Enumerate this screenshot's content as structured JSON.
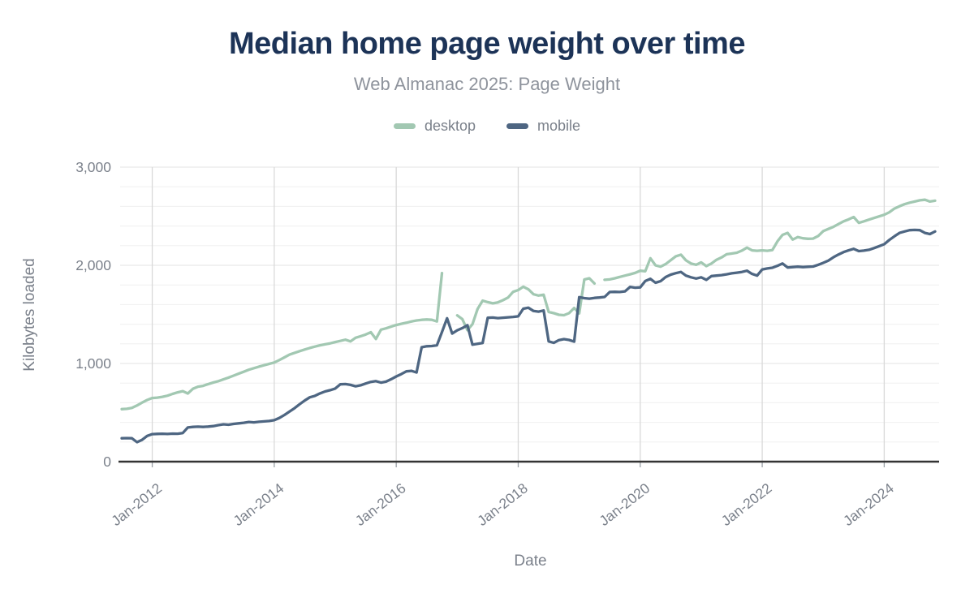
{
  "header": {
    "title": "Median home page weight over time",
    "subtitle": "Web Almanac 2025: Page Weight"
  },
  "legend": [
    {
      "label": "desktop",
      "color": "#a2c8b2"
    },
    {
      "label": "mobile",
      "color": "#4e6682"
    }
  ],
  "chart_data": {
    "type": "line",
    "title": "Median home page weight over time",
    "subtitle": "Web Almanac 2025: Page Weight",
    "xlabel": "Date",
    "ylabel": "Kilobytes loaded",
    "ylim": [
      0,
      3000
    ],
    "grid": {
      "vertical_color": "#d9d9d9",
      "major_color": "#e3e3e3",
      "minor_color": "#f0f0f0",
      "axis_color": "#333333",
      "minor_step": 200
    },
    "legend_position": "top",
    "y_ticks": [
      {
        "value": 0,
        "label": "0"
      },
      {
        "value": 1000,
        "label": "1,000"
      },
      {
        "value": 2000,
        "label": "2,000"
      },
      {
        "value": 3000,
        "label": "3,000"
      }
    ],
    "x_ticks": [
      {
        "month": "2012-01",
        "label": "Jan-2012"
      },
      {
        "month": "2014-01",
        "label": "Jan-2014"
      },
      {
        "month": "2016-01",
        "label": "Jan-2016"
      },
      {
        "month": "2018-01",
        "label": "Jan-2018"
      },
      {
        "month": "2020-01",
        "label": "Jan-2020"
      },
      {
        "month": "2022-01",
        "label": "Jan-2022"
      },
      {
        "month": "2024-01",
        "label": "Jan-2024"
      }
    ],
    "x": [
      "2011-07",
      "2011-08",
      "2011-09",
      "2011-10",
      "2011-11",
      "2011-12",
      "2012-01",
      "2012-02",
      "2012-03",
      "2012-04",
      "2012-05",
      "2012-06",
      "2012-07",
      "2012-08",
      "2012-09",
      "2012-10",
      "2012-11",
      "2012-12",
      "2013-01",
      "2013-02",
      "2013-03",
      "2013-04",
      "2013-05",
      "2013-06",
      "2013-07",
      "2013-08",
      "2013-09",
      "2013-10",
      "2013-11",
      "2013-12",
      "2014-01",
      "2014-02",
      "2014-03",
      "2014-04",
      "2014-05",
      "2014-06",
      "2014-07",
      "2014-08",
      "2014-09",
      "2014-10",
      "2014-11",
      "2014-12",
      "2015-01",
      "2015-02",
      "2015-03",
      "2015-04",
      "2015-05",
      "2015-06",
      "2015-07",
      "2015-08",
      "2015-09",
      "2015-10",
      "2015-11",
      "2015-12",
      "2016-01",
      "2016-02",
      "2016-03",
      "2016-04",
      "2016-05",
      "2016-06",
      "2016-07",
      "2016-08",
      "2016-09",
      "2016-10",
      "2016-11",
      "2016-12",
      "2017-01",
      "2017-02",
      "2017-03",
      "2017-04",
      "2017-05",
      "2017-06",
      "2017-07",
      "2017-08",
      "2017-09",
      "2017-10",
      "2017-11",
      "2017-12",
      "2018-01",
      "2018-02",
      "2018-03",
      "2018-04",
      "2018-05",
      "2018-06",
      "2018-07",
      "2018-08",
      "2018-09",
      "2018-10",
      "2018-11",
      "2018-12",
      "2019-01",
      "2019-02",
      "2019-03",
      "2019-04",
      "2019-05",
      "2019-06",
      "2019-07",
      "2019-08",
      "2019-09",
      "2019-10",
      "2019-11",
      "2019-12",
      "2020-01",
      "2020-02",
      "2020-03",
      "2020-04",
      "2020-05",
      "2020-06",
      "2020-07",
      "2020-08",
      "2020-09",
      "2020-10",
      "2020-11",
      "2020-12",
      "2021-01",
      "2021-02",
      "2021-03",
      "2021-04",
      "2021-05",
      "2021-06",
      "2021-07",
      "2021-08",
      "2021-09",
      "2021-10",
      "2021-11",
      "2021-12",
      "2022-01",
      "2022-02",
      "2022-03",
      "2022-04",
      "2022-05",
      "2022-06",
      "2022-07",
      "2022-08",
      "2022-09",
      "2022-10",
      "2022-11",
      "2022-12",
      "2023-01",
      "2023-02",
      "2023-03",
      "2023-04",
      "2023-05",
      "2023-06",
      "2023-07",
      "2023-08",
      "2023-09",
      "2023-10",
      "2023-11",
      "2023-12",
      "2024-01",
      "2024-02",
      "2024-03",
      "2024-04",
      "2024-05",
      "2024-06",
      "2024-07",
      "2024-08",
      "2024-09",
      "2024-10",
      "2024-11"
    ],
    "series": [
      {
        "name": "desktop",
        "color": "#a2c8b2",
        "values": [
          535,
          538,
          548,
          572,
          602,
          628,
          648,
          652,
          660,
          672,
          690,
          706,
          718,
          694,
          742,
          764,
          772,
          790,
          806,
          820,
          838,
          856,
          876,
          896,
          916,
          936,
          952,
          968,
          982,
          996,
          1010,
          1035,
          1062,
          1090,
          1108,
          1126,
          1142,
          1158,
          1172,
          1185,
          1195,
          1205,
          1218,
          1230,
          1242,
          1225,
          1262,
          1278,
          1295,
          1318,
          1250,
          1345,
          1358,
          1375,
          1392,
          1404,
          1415,
          1428,
          1438,
          1445,
          1448,
          1445,
          1428,
          1920,
          null,
          null,
          1490,
          1452,
          1340,
          1400,
          1555,
          1640,
          1625,
          1612,
          1622,
          1645,
          1672,
          1730,
          1748,
          1782,
          1755,
          1705,
          1692,
          1700,
          1525,
          1512,
          1496,
          1492,
          1512,
          1565,
          1510,
          1855,
          1868,
          1815,
          null,
          1852,
          1856,
          1868,
          1882,
          1895,
          1908,
          1922,
          1945,
          1940,
          2072,
          2000,
          1986,
          2012,
          2052,
          2092,
          2108,
          2050,
          2018,
          2005,
          2030,
          1992,
          2018,
          2056,
          2080,
          2112,
          2120,
          2128,
          2150,
          2180,
          2152,
          2148,
          2152,
          2148,
          2155,
          2245,
          2310,
          2330,
          2262,
          2288,
          2275,
          2270,
          2272,
          2298,
          2348,
          2370,
          2392,
          2420,
          2448,
          2468,
          2492,
          2432,
          2448,
          2465,
          2482,
          2498,
          2515,
          2540,
          2578,
          2602,
          2622,
          2638,
          2650,
          2662,
          2668,
          2650,
          2658
        ]
      },
      {
        "name": "mobile",
        "color": "#4e6682",
        "values": [
          238,
          240,
          238,
          198,
          222,
          262,
          280,
          283,
          284,
          282,
          285,
          284,
          292,
          348,
          354,
          356,
          354,
          357,
          362,
          372,
          380,
          376,
          384,
          390,
          396,
          404,
          400,
          406,
          410,
          414,
          422,
          445,
          475,
          510,
          545,
          585,
          622,
          655,
          670,
          695,
          715,
          728,
          745,
          788,
          790,
          782,
          768,
          778,
          796,
          812,
          820,
          805,
          815,
          840,
          868,
          892,
          920,
          925,
          908,
          1165,
          1175,
          1178,
          1185,
          1320,
          1460,
          1305,
          1338,
          1360,
          1390,
          1192,
          1200,
          1208,
          1465,
          1468,
          1462,
          1466,
          1470,
          1474,
          1480,
          1558,
          1568,
          1535,
          1528,
          1540,
          1225,
          1210,
          1238,
          1248,
          1240,
          1222,
          1675,
          1665,
          1660,
          1668,
          1672,
          1678,
          1728,
          1730,
          1728,
          1735,
          1780,
          1772,
          1775,
          1840,
          1862,
          1822,
          1838,
          1880,
          1905,
          1920,
          1932,
          1895,
          1878,
          1865,
          1878,
          1852,
          1890,
          1895,
          1900,
          1908,
          1918,
          1925,
          1932,
          1945,
          1912,
          1895,
          1958,
          1968,
          1975,
          1995,
          2018,
          1978,
          1982,
          1986,
          1982,
          1985,
          1988,
          2005,
          2025,
          2048,
          2082,
          2110,
          2135,
          2152,
          2168,
          2145,
          2150,
          2158,
          2175,
          2195,
          2215,
          2258,
          2295,
          2330,
          2345,
          2358,
          2360,
          2358,
          2330,
          2318,
          2345
        ]
      }
    ]
  }
}
